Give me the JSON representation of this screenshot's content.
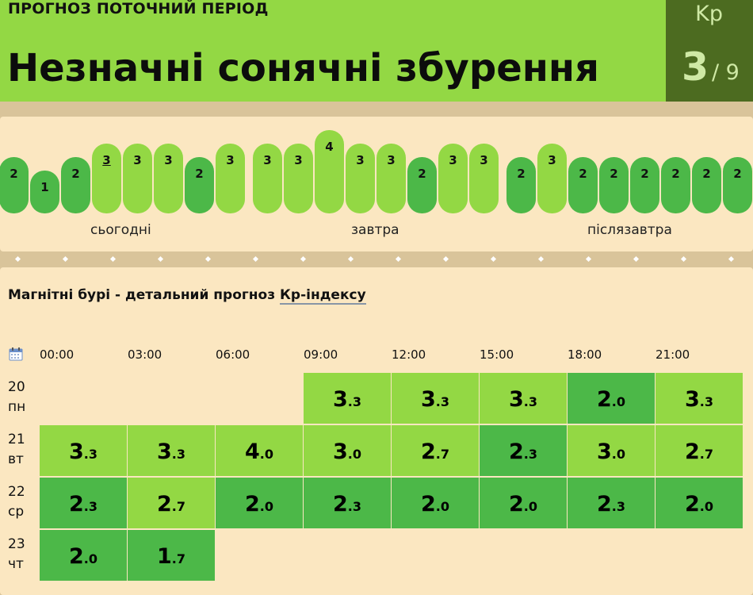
{
  "header": {
    "period_label": "ПРОГНОЗ ПОТОЧНИЙ ПЕРІОД",
    "title": "Незначні сонячні збурення",
    "kp_label": "Kp",
    "kp_value": "3",
    "kp_max": "/ 9"
  },
  "strip": {
    "bars": [
      "2",
      "1",
      "2",
      "3",
      "3",
      "3",
      "2",
      "3",
      "3",
      "3",
      "4",
      "3",
      "3",
      "2",
      "3",
      "3",
      "2",
      "3",
      "2",
      "2",
      "2",
      "2",
      "2",
      "2"
    ],
    "days": [
      "сьогодні",
      "завтра",
      "післязавтра"
    ]
  },
  "detail": {
    "title_prefix": "Магнітні бурі - детальний прогноз ",
    "title_link": "Кр-індексу",
    "hours": [
      "00:00",
      "03:00",
      "06:00",
      "09:00",
      "12:00",
      "15:00",
      "18:00",
      "21:00"
    ],
    "rows": [
      {
        "day": "20",
        "weekday": "пн",
        "cells": [
          null,
          null,
          null,
          [
            "3",
            ".3"
          ],
          [
            "3",
            ".3"
          ],
          [
            "3",
            ".3"
          ],
          [
            "2",
            ".0"
          ],
          [
            "3",
            ".3"
          ]
        ]
      },
      {
        "day": "21",
        "weekday": "вт",
        "cells": [
          [
            "3",
            ".3"
          ],
          [
            "3",
            ".3"
          ],
          [
            "4",
            ".0"
          ],
          [
            "3",
            ".0"
          ],
          [
            "2",
            ".7"
          ],
          [
            "2",
            ".3"
          ],
          [
            "3",
            ".0"
          ],
          [
            "2",
            ".7"
          ]
        ]
      },
      {
        "day": "22",
        "weekday": "ср",
        "cells": [
          [
            "2",
            ".3"
          ],
          [
            "2",
            ".7"
          ],
          [
            "2",
            ".0"
          ],
          [
            "2",
            ".3"
          ],
          [
            "2",
            ".0"
          ],
          [
            "2",
            ".0"
          ],
          [
            "2",
            ".3"
          ],
          [
            "2",
            ".0"
          ]
        ]
      },
      {
        "day": "23",
        "weekday": "чт",
        "cells": [
          [
            "2",
            ".0"
          ],
          [
            "1",
            ".7"
          ],
          null,
          null,
          null,
          null,
          null,
          null
        ]
      }
    ]
  },
  "colors": {
    "high": "#93d844",
    "low": "#4cb848",
    "dark": "#4c6b20"
  }
}
